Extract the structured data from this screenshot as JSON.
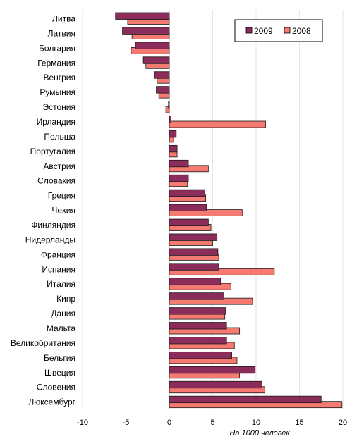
{
  "chart_data": {
    "type": "bar",
    "orientation": "horizontal",
    "xlabel": "На 1000 человек",
    "xlim": [
      -10,
      20
    ],
    "xticks": [
      -10,
      -5,
      0,
      5,
      10,
      15,
      20
    ],
    "grid": "vertical",
    "legend_position": "top-right",
    "categories": [
      "Литва",
      "Латвия",
      "Болгария",
      "Германия",
      "Венгрия",
      "Румыния",
      "Эстония",
      "Ирландия",
      "Польша",
      "Португалия",
      "Австрия",
      "Словакия",
      "Греция",
      "Чехия",
      "Финляндия",
      "Нидерланды",
      "Франция",
      "Испания",
      "Италия",
      "Кипр",
      "Дания",
      "Мальта",
      "Великобритания",
      "Бельгия",
      "Швеция",
      "Словения",
      "Люксембург"
    ],
    "series": [
      {
        "name": "2009",
        "color": "#8b2c5a",
        "values": [
          -6.2,
          -5.4,
          -3.9,
          -3.0,
          -1.7,
          -1.5,
          -0.1,
          0.2,
          0.8,
          0.9,
          2.2,
          2.2,
          4.1,
          4.3,
          4.5,
          5.5,
          5.6,
          5.7,
          5.9,
          6.3,
          6.5,
          6.6,
          6.6,
          7.2,
          9.9,
          10.7,
          17.5
        ]
      },
      {
        "name": "2008",
        "color": "#f47a72",
        "values": [
          -4.8,
          -4.3,
          -4.4,
          -2.7,
          -1.4,
          -1.2,
          -0.4,
          11.1,
          0.5,
          0.9,
          4.5,
          2.1,
          4.2,
          8.4,
          4.8,
          5.0,
          5.7,
          12.1,
          7.1,
          9.6,
          6.4,
          8.1,
          7.5,
          7.8,
          8.1,
          11.0,
          19.9
        ]
      }
    ]
  }
}
